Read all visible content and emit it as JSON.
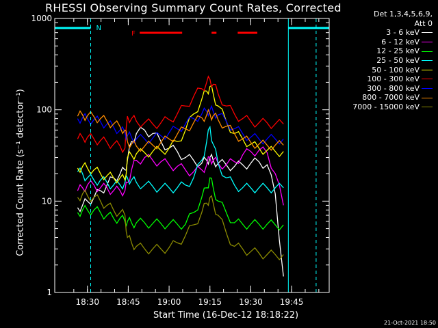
{
  "chart_data": {
    "type": "line",
    "title": "RHESSI Observing Summary Count Rates, Corrected",
    "xlabel": "Start Time (16-Dec-12 18:18:22)",
    "ylabel": "Corrected Count Rate (s⁻¹ detector⁻¹)",
    "yscale": "log",
    "ylim": [
      1,
      1000
    ],
    "xlim_minutes": [
      18.3,
      19.98
    ],
    "xticks": [
      {
        "label": "18:30",
        "value": 18.5
      },
      {
        "label": "18:45",
        "value": 18.75
      },
      {
        "label": "19:00",
        "value": 19.0
      },
      {
        "label": "19:15",
        "value": 19.25
      },
      {
        "label": "19:30",
        "value": 19.5
      },
      {
        "label": "19:45",
        "value": 19.75
      }
    ],
    "yticks": [
      {
        "label": "1",
        "value": 1
      },
      {
        "label": "10",
        "value": 10
      },
      {
        "label": "100",
        "value": 100
      },
      {
        "label": "1000",
        "value": 1000
      }
    ],
    "legend_header": [
      "Det 1,3,4,5,6,9,",
      "Att 0"
    ],
    "legend_placement": "right",
    "grid": false,
    "x_values": [
      18.44,
      18.47,
      18.5,
      18.54,
      18.58,
      18.62,
      18.66,
      18.7,
      18.73,
      18.745,
      18.77,
      18.8,
      18.85,
      18.9,
      18.95,
      19.0,
      19.05,
      19.1,
      19.15,
      19.2,
      19.23,
      19.25,
      19.27,
      19.3,
      19.35,
      19.4,
      19.45,
      19.5,
      19.55,
      19.6,
      19.65,
      19.7
    ],
    "series": [
      {
        "name": "3 - 6 keV",
        "color": "#ffffff",
        "values": [
          8.5,
          9,
          10,
          11,
          13,
          15,
          18,
          20,
          22,
          28,
          45,
          55,
          60,
          55,
          45,
          38,
          35,
          30,
          28,
          26,
          28,
          30,
          28,
          26,
          25,
          24,
          25,
          26,
          27,
          25,
          12,
          1.5
        ]
      },
      {
        "name": "6 - 12 keV",
        "color": "#ff00ff",
        "values": [
          13,
          14,
          15,
          15,
          14,
          14,
          13,
          13,
          13,
          16,
          22,
          28,
          30,
          28,
          27,
          25,
          24,
          22,
          21,
          22,
          25,
          30,
          28,
          26,
          25,
          27,
          32,
          35,
          36,
          34,
          20,
          9
        ]
      },
      {
        "name": "12 - 25 keV",
        "color": "#00ff00",
        "values": [
          7.5,
          8,
          8,
          8,
          7.5,
          7,
          6.5,
          6.5,
          6,
          6,
          5.8,
          5.8,
          5.8,
          5.7,
          5.7,
          5.6,
          5.6,
          5.6,
          7.5,
          11,
          14,
          18,
          14,
          10,
          7.5,
          5.8,
          5.6,
          5.6,
          5.6,
          5.6,
          5.5,
          5.5
        ]
      },
      {
        "name": "25 - 50 keV",
        "color": "#00ffff",
        "values": [
          21,
          20,
          18,
          17,
          17,
          16,
          15,
          15,
          16,
          18,
          17,
          16,
          15,
          14.5,
          14,
          14,
          14,
          15,
          18,
          28,
          45,
          65,
          42,
          26,
          18,
          15,
          14,
          14,
          14,
          14,
          14,
          14
        ]
      },
      {
        "name": "50 - 100 keV",
        "color": "#ffff00",
        "values": [
          23,
          24,
          23,
          22,
          20,
          19,
          18,
          18,
          17,
          30,
          32,
          33,
          34,
          35,
          36,
          38,
          45,
          60,
          90,
          130,
          160,
          180,
          150,
          110,
          75,
          55,
          48,
          42,
          38,
          36,
          35,
          35
        ]
      },
      {
        "name": "100 - 300 keV",
        "color": "#ff0000",
        "values": [
          48,
          50,
          50,
          48,
          46,
          44,
          42,
          40,
          38,
          85,
          80,
          75,
          72,
          70,
          72,
          78,
          90,
          110,
          140,
          170,
          200,
          215,
          190,
          150,
          110,
          90,
          80,
          75,
          72,
          72,
          70,
          70
        ]
      },
      {
        "name": "300 - 800 keV",
        "color": "#0000ff",
        "values": [
          80,
          82,
          80,
          78,
          74,
          70,
          65,
          60,
          56,
          52,
          50,
          48,
          48,
          49,
          52,
          56,
          62,
          70,
          80,
          90,
          96,
          100,
          96,
          88,
          75,
          62,
          55,
          50,
          48,
          48,
          48,
          48
        ]
      },
      {
        "name": "800 - 7000 keV",
        "color": "#ff8c00",
        "values": [
          85,
          88,
          86,
          84,
          80,
          75,
          70,
          65,
          60,
          45,
          42,
          40,
          40,
          41,
          44,
          48,
          54,
          62,
          72,
          82,
          88,
          90,
          86,
          78,
          66,
          55,
          48,
          44,
          42,
          41,
          41,
          41
        ]
      },
      {
        "name": "7000 - 15000 keV",
        "color": "#8b8b00",
        "values": [
          11,
          12,
          11.5,
          11,
          10,
          9,
          8,
          7.5,
          7,
          4,
          3.5,
          3.2,
          3.0,
          3.0,
          3.0,
          3.1,
          3.5,
          4.2,
          5.5,
          7.5,
          9.5,
          11,
          9.5,
          7,
          4.5,
          3.2,
          3.0,
          2.8,
          2.7,
          2.6,
          2.6,
          2.6
        ]
      }
    ],
    "annotations": [
      {
        "text": "N",
        "color": "#00ffff"
      },
      {
        "text": "F",
        "color": "#ff0000"
      }
    ],
    "flag_bars": {
      "night_color": "#00ffff",
      "night_x_ranges": [
        [
          18.3,
          18.52
        ],
        [
          19.73,
          19.98
        ]
      ],
      "flare_color": "#ff0000",
      "flare_x_ranges": [
        [
          18.82,
          19.08
        ],
        [
          19.26,
          19.29
        ],
        [
          19.42,
          19.54
        ]
      ]
    },
    "vertical_lines": {
      "color": "#00ffff",
      "dashed_x": [
        18.52,
        19.9
      ],
      "solid_x": [
        19.73
      ]
    }
  },
  "footer_stamp": "21-Oct-2021 18:50"
}
